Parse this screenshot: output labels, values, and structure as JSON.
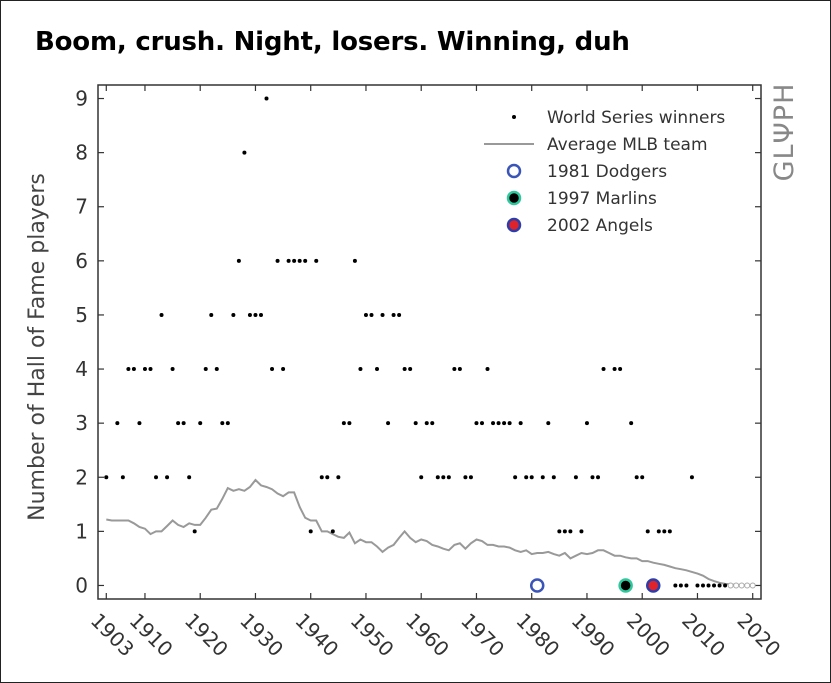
{
  "title": "Boom, crush. Night, losers. Winning, duh",
  "brand": "GLΨPH",
  "chart_data": {
    "type": "scatter",
    "ylabel": "Number of Hall of Fame players",
    "xlabel": "",
    "xlim": [
      1901.5,
      2021.5
    ],
    "ylim": [
      -0.25,
      9.25
    ],
    "xticks": [
      1903,
      1910,
      1920,
      1930,
      1940,
      1950,
      1960,
      1970,
      1980,
      1990,
      2000,
      2010,
      2020
    ],
    "yticks": [
      0,
      1,
      2,
      3,
      4,
      5,
      6,
      7,
      8,
      9
    ],
    "grid": false,
    "legend_position": "top-right",
    "legend": [
      "World Series winners",
      "Average MLB team",
      "1981 Dodgers",
      "1997 Marlins",
      "2002 Angels"
    ],
    "series": [
      {
        "name": "World Series winners",
        "kind": "scatter",
        "color": "#000000",
        "points": [
          [
            1903,
            2
          ],
          [
            1905,
            3
          ],
          [
            1906,
            2
          ],
          [
            1907,
            4
          ],
          [
            1908,
            4
          ],
          [
            1909,
            3
          ],
          [
            1910,
            4
          ],
          [
            1911,
            4
          ],
          [
            1912,
            2
          ],
          [
            1913,
            5
          ],
          [
            1914,
            2
          ],
          [
            1915,
            4
          ],
          [
            1916,
            3
          ],
          [
            1917,
            3
          ],
          [
            1918,
            2
          ],
          [
            1919,
            1
          ],
          [
            1920,
            3
          ],
          [
            1921,
            4
          ],
          [
            1922,
            5
          ],
          [
            1923,
            4
          ],
          [
            1924,
            3
          ],
          [
            1925,
            3
          ],
          [
            1926,
            5
          ],
          [
            1927,
            6
          ],
          [
            1928,
            8
          ],
          [
            1929,
            5
          ],
          [
            1930,
            5
          ],
          [
            1931,
            5
          ],
          [
            1932,
            9
          ],
          [
            1933,
            4
          ],
          [
            1934,
            6
          ],
          [
            1935,
            4
          ],
          [
            1936,
            6
          ],
          [
            1937,
            6
          ],
          [
            1938,
            6
          ],
          [
            1939,
            6
          ],
          [
            1940,
            1
          ],
          [
            1941,
            6
          ],
          [
            1942,
            2
          ],
          [
            1943,
            2
          ],
          [
            1944,
            1
          ],
          [
            1945,
            2
          ],
          [
            1946,
            3
          ],
          [
            1947,
            3
          ],
          [
            1948,
            6
          ],
          [
            1949,
            4
          ],
          [
            1950,
            5
          ],
          [
            1951,
            5
          ],
          [
            1952,
            4
          ],
          [
            1953,
            5
          ],
          [
            1954,
            3
          ],
          [
            1955,
            5
          ],
          [
            1956,
            5
          ],
          [
            1957,
            4
          ],
          [
            1958,
            4
          ],
          [
            1959,
            3
          ],
          [
            1960,
            2
          ],
          [
            1961,
            3
          ],
          [
            1962,
            3
          ],
          [
            1963,
            2
          ],
          [
            1964,
            2
          ],
          [
            1965,
            2
          ],
          [
            1966,
            4
          ],
          [
            1967,
            4
          ],
          [
            1968,
            2
          ],
          [
            1969,
            2
          ],
          [
            1970,
            3
          ],
          [
            1971,
            3
          ],
          [
            1972,
            4
          ],
          [
            1973,
            3
          ],
          [
            1974,
            3
          ],
          [
            1975,
            3
          ],
          [
            1976,
            3
          ],
          [
            1977,
            2
          ],
          [
            1978,
            3
          ],
          [
            1979,
            2
          ],
          [
            1980,
            2
          ],
          [
            1982,
            2
          ],
          [
            1983,
            3
          ],
          [
            1984,
            2
          ],
          [
            1985,
            1
          ],
          [
            1986,
            1
          ],
          [
            1987,
            1
          ],
          [
            1988,
            2
          ],
          [
            1989,
            1
          ],
          [
            1990,
            3
          ],
          [
            1991,
            2
          ],
          [
            1992,
            2
          ],
          [
            1993,
            4
          ],
          [
            1995,
            4
          ],
          [
            1996,
            4
          ],
          [
            1998,
            3
          ],
          [
            1999,
            2
          ],
          [
            2000,
            2
          ],
          [
            2001,
            1
          ],
          [
            2003,
            1
          ],
          [
            2004,
            1
          ],
          [
            2005,
            1
          ],
          [
            2006,
            0
          ],
          [
            2007,
            0
          ],
          [
            2008,
            0
          ],
          [
            2009,
            2
          ],
          [
            2010,
            0
          ],
          [
            2011,
            0
          ],
          [
            2012,
            0
          ],
          [
            2013,
            0
          ],
          [
            2014,
            0
          ],
          [
            2015,
            0
          ]
        ]
      },
      {
        "name": "Average MLB team",
        "kind": "line",
        "color": "#999999",
        "points": [
          [
            1903,
            1.22
          ],
          [
            1904,
            1.2
          ],
          [
            1905,
            1.2
          ],
          [
            1906,
            1.2
          ],
          [
            1907,
            1.2
          ],
          [
            1908,
            1.15
          ],
          [
            1909,
            1.08
          ],
          [
            1910,
            1.05
          ],
          [
            1911,
            0.95
          ],
          [
            1912,
            1.0
          ],
          [
            1913,
            1.0
          ],
          [
            1914,
            1.1
          ],
          [
            1915,
            1.2
          ],
          [
            1916,
            1.12
          ],
          [
            1917,
            1.08
          ],
          [
            1918,
            1.15
          ],
          [
            1919,
            1.12
          ],
          [
            1920,
            1.12
          ],
          [
            1921,
            1.25
          ],
          [
            1922,
            1.4
          ],
          [
            1923,
            1.42
          ],
          [
            1924,
            1.6
          ],
          [
            1925,
            1.8
          ],
          [
            1926,
            1.75
          ],
          [
            1927,
            1.78
          ],
          [
            1928,
            1.75
          ],
          [
            1929,
            1.82
          ],
          [
            1930,
            1.95
          ],
          [
            1931,
            1.85
          ],
          [
            1932,
            1.82
          ],
          [
            1933,
            1.78
          ],
          [
            1934,
            1.7
          ],
          [
            1935,
            1.65
          ],
          [
            1936,
            1.72
          ],
          [
            1937,
            1.72
          ],
          [
            1938,
            1.45
          ],
          [
            1939,
            1.25
          ],
          [
            1940,
            1.2
          ],
          [
            1941,
            1.2
          ],
          [
            1942,
            1.0
          ],
          [
            1943,
            1.0
          ],
          [
            1944,
            0.95
          ],
          [
            1945,
            0.9
          ],
          [
            1946,
            0.88
          ],
          [
            1947,
            0.98
          ],
          [
            1948,
            0.78
          ],
          [
            1949,
            0.85
          ],
          [
            1950,
            0.8
          ],
          [
            1951,
            0.8
          ],
          [
            1952,
            0.72
          ],
          [
            1953,
            0.62
          ],
          [
            1954,
            0.7
          ],
          [
            1955,
            0.75
          ],
          [
            1956,
            0.88
          ],
          [
            1957,
            1.0
          ],
          [
            1958,
            0.88
          ],
          [
            1959,
            0.8
          ],
          [
            1960,
            0.85
          ],
          [
            1961,
            0.82
          ],
          [
            1962,
            0.75
          ],
          [
            1963,
            0.72
          ],
          [
            1964,
            0.68
          ],
          [
            1965,
            0.65
          ],
          [
            1966,
            0.75
          ],
          [
            1967,
            0.78
          ],
          [
            1968,
            0.68
          ],
          [
            1969,
            0.78
          ],
          [
            1970,
            0.85
          ],
          [
            1971,
            0.82
          ],
          [
            1972,
            0.75
          ],
          [
            1973,
            0.75
          ],
          [
            1974,
            0.72
          ],
          [
            1975,
            0.72
          ],
          [
            1976,
            0.7
          ],
          [
            1977,
            0.65
          ],
          [
            1978,
            0.62
          ],
          [
            1979,
            0.65
          ],
          [
            1980,
            0.58
          ],
          [
            1981,
            0.6
          ],
          [
            1982,
            0.6
          ],
          [
            1983,
            0.62
          ],
          [
            1984,
            0.58
          ],
          [
            1985,
            0.55
          ],
          [
            1986,
            0.6
          ],
          [
            1987,
            0.5
          ],
          [
            1988,
            0.55
          ],
          [
            1989,
            0.6
          ],
          [
            1990,
            0.58
          ],
          [
            1991,
            0.6
          ],
          [
            1992,
            0.65
          ],
          [
            1993,
            0.65
          ],
          [
            1994,
            0.6
          ],
          [
            1995,
            0.55
          ],
          [
            1996,
            0.55
          ],
          [
            1997,
            0.52
          ],
          [
            1998,
            0.5
          ],
          [
            1999,
            0.5
          ],
          [
            2000,
            0.45
          ],
          [
            2001,
            0.45
          ],
          [
            2002,
            0.42
          ],
          [
            2003,
            0.4
          ],
          [
            2004,
            0.38
          ],
          [
            2005,
            0.35
          ],
          [
            2006,
            0.32
          ],
          [
            2007,
            0.3
          ],
          [
            2008,
            0.28
          ],
          [
            2009,
            0.25
          ],
          [
            2010,
            0.22
          ],
          [
            2011,
            0.18
          ],
          [
            2012,
            0.12
          ],
          [
            2013,
            0.08
          ],
          [
            2014,
            0.05
          ],
          [
            2015,
            0.03
          ],
          [
            2016,
            0.02
          ],
          [
            2017,
            0.01
          ],
          [
            2018,
            0.01
          ],
          [
            2019,
            0.0
          ],
          [
            2020,
            0.0
          ]
        ]
      },
      {
        "name": "World Series winners (trailing)",
        "kind": "hollow",
        "color": "#aaaaaa",
        "points": [
          [
            2016,
            0
          ],
          [
            2017,
            0
          ],
          [
            2018,
            0
          ],
          [
            2019,
            0
          ],
          [
            2020,
            0
          ]
        ]
      },
      {
        "name": "1981 Dodgers",
        "kind": "highlight",
        "x": 1981,
        "y": 0,
        "ring": "#3a54b8",
        "fill": "#ffffff"
      },
      {
        "name": "1997 Marlins",
        "kind": "highlight",
        "x": 1997,
        "y": 0,
        "ring": "#2fc79c",
        "fill": "#000000"
      },
      {
        "name": "2002 Angels",
        "kind": "highlight",
        "x": 2002,
        "y": 0,
        "ring": "#2e3ea8",
        "fill": "#e0222a"
      }
    ]
  }
}
